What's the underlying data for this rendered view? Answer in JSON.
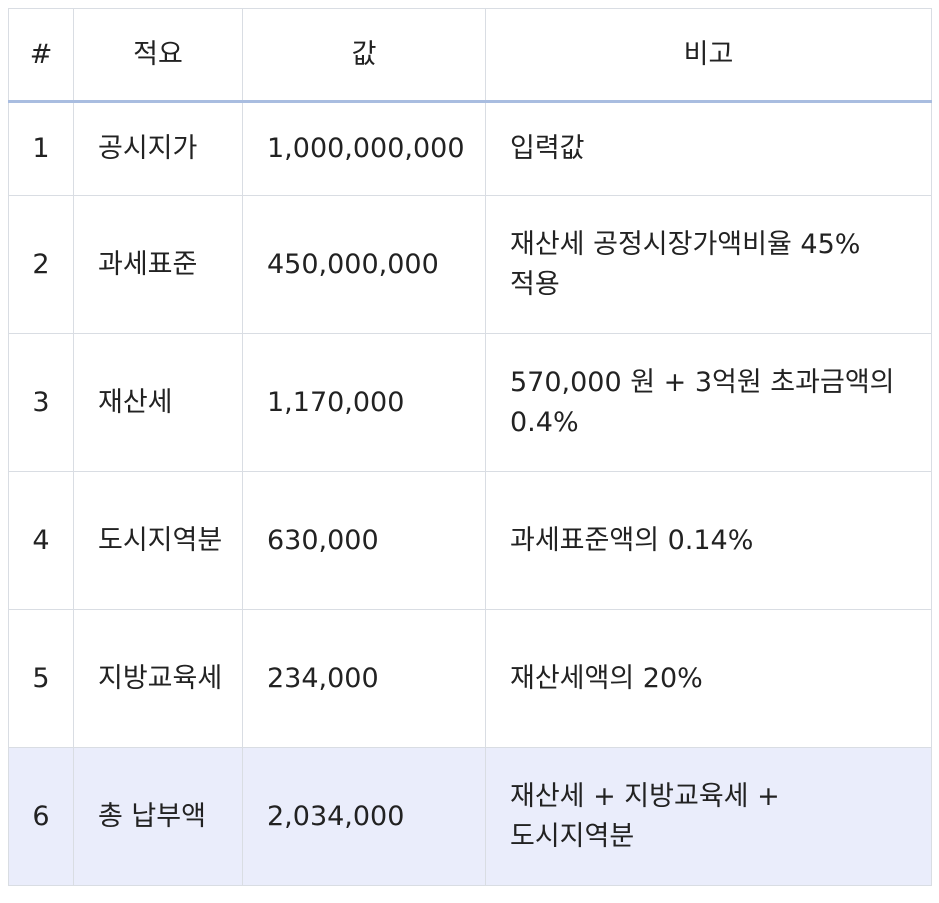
{
  "table": {
    "headers": [
      "#",
      "적요",
      "값",
      "비고"
    ],
    "rows": [
      {
        "num": "1",
        "desc": "공시지가",
        "value": "1,000,000,000",
        "note": "입력값"
      },
      {
        "num": "2",
        "desc": "과세표준",
        "value": "450,000,000",
        "note": "재산세 공정시장가액비율 45% 적용"
      },
      {
        "num": "3",
        "desc": "재산세",
        "value": "1,170,000",
        "note": "570,000 원 + 3억원 초과금액의 0.4%"
      },
      {
        "num": "4",
        "desc": "도시지역분",
        "value": "630,000",
        "note": "과세표준액의 0.14%"
      },
      {
        "num": "5",
        "desc": "지방교육세",
        "value": "234,000",
        "note": "재산세액의 20%"
      },
      {
        "num": "6",
        "desc": "총 납부액",
        "value": "2,034,000",
        "note": "재산세 + 지방교육세 + 도시지역분"
      }
    ]
  },
  "colors": {
    "header_underline": "#a9bde0",
    "total_row_bg": "#eaedfb",
    "grid": "#d9dde3"
  }
}
